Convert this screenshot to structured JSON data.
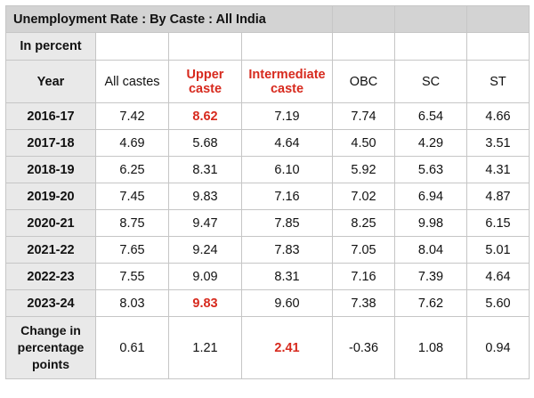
{
  "title": "Unemployment Rate : By Caste : All India",
  "unit": "In percent",
  "chart_data": {
    "type": "table",
    "title": "Unemployment Rate : By Caste : All India",
    "unit": "In percent",
    "row_header": "Year",
    "columns": [
      {
        "label": "All castes",
        "highlight": false
      },
      {
        "label": "Upper caste",
        "highlight": true
      },
      {
        "label": "Intermediate caste",
        "highlight": true
      },
      {
        "label": "OBC",
        "highlight": false
      },
      {
        "label": "SC",
        "highlight": false
      },
      {
        "label": "ST",
        "highlight": false
      }
    ],
    "rows": [
      {
        "label": "2016-17",
        "values": [
          "7.42",
          "8.62",
          "7.19",
          "7.74",
          "6.54",
          "4.66"
        ],
        "highlight": [
          false,
          true,
          false,
          false,
          false,
          false
        ]
      },
      {
        "label": "2017-18",
        "values": [
          "4.69",
          "5.68",
          "4.64",
          "4.50",
          "4.29",
          "3.51"
        ],
        "highlight": [
          false,
          false,
          false,
          false,
          false,
          false
        ]
      },
      {
        "label": "2018-19",
        "values": [
          "6.25",
          "8.31",
          "6.10",
          "5.92",
          "5.63",
          "4.31"
        ],
        "highlight": [
          false,
          false,
          false,
          false,
          false,
          false
        ]
      },
      {
        "label": "2019-20",
        "values": [
          "7.45",
          "9.83",
          "7.16",
          "7.02",
          "6.94",
          "4.87"
        ],
        "highlight": [
          false,
          false,
          false,
          false,
          false,
          false
        ]
      },
      {
        "label": "2020-21",
        "values": [
          "8.75",
          "9.47",
          "7.85",
          "8.25",
          "9.98",
          "6.15"
        ],
        "highlight": [
          false,
          false,
          false,
          false,
          false,
          false
        ]
      },
      {
        "label": "2021-22",
        "values": [
          "7.65",
          "9.24",
          "7.83",
          "7.05",
          "8.04",
          "5.01"
        ],
        "highlight": [
          false,
          false,
          false,
          false,
          false,
          false
        ]
      },
      {
        "label": "2022-23",
        "values": [
          "7.55",
          "9.09",
          "8.31",
          "7.16",
          "7.39",
          "4.64"
        ],
        "highlight": [
          false,
          false,
          false,
          false,
          false,
          false
        ]
      },
      {
        "label": "2023-24",
        "values": [
          "8.03",
          "9.83",
          "9.60",
          "7.38",
          "7.62",
          "5.60"
        ],
        "highlight": [
          false,
          true,
          false,
          false,
          false,
          false
        ]
      },
      {
        "label": "Change in percentage points",
        "values": [
          "0.61",
          "1.21",
          "2.41",
          "-0.36",
          "1.08",
          "0.94"
        ],
        "highlight": [
          false,
          false,
          true,
          false,
          false,
          false
        ]
      }
    ]
  },
  "colors": {
    "highlight": "#d72a1e",
    "header_fill": "#d3d3d3",
    "row_header_fill": "#e9e9e9",
    "grid_line": "#c6c6c6"
  }
}
